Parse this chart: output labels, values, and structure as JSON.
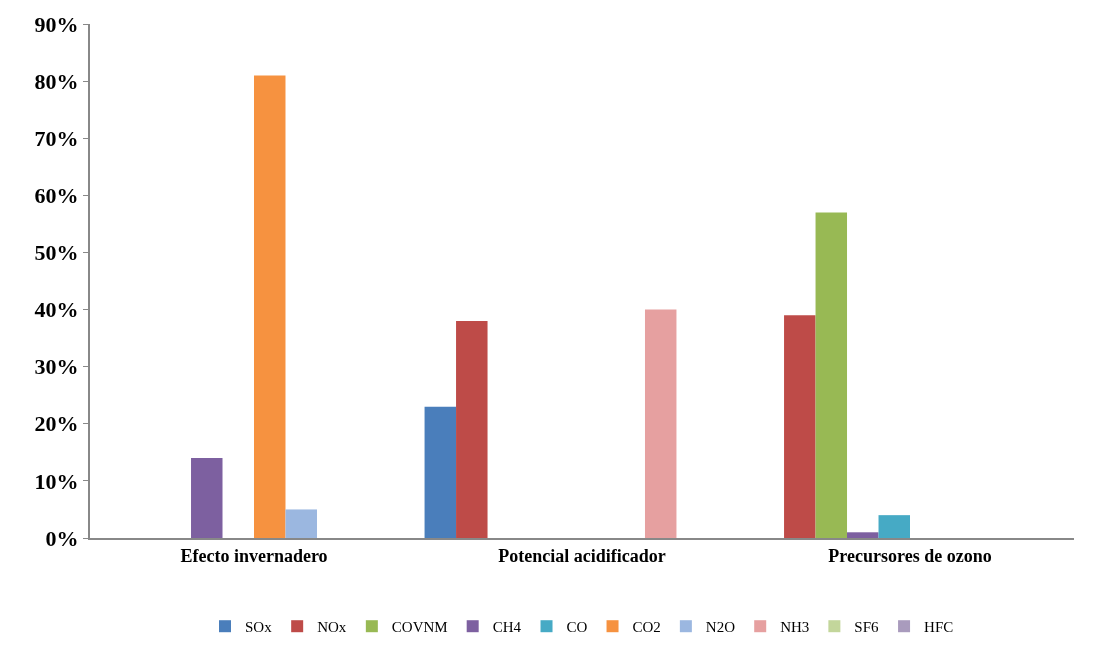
{
  "chart_data": {
    "type": "bar",
    "categories": [
      "Efecto invernadero",
      "Potencial acidificador",
      "Precursores de ozono"
    ],
    "series": [
      {
        "name": "SOx",
        "color": "#4a7ebb",
        "values": [
          0,
          23,
          0
        ]
      },
      {
        "name": "NOx",
        "color": "#be4b48",
        "values": [
          0,
          38,
          39
        ]
      },
      {
        "name": "COVNM",
        "color": "#98b954",
        "values": [
          0,
          0,
          57
        ]
      },
      {
        "name": "CH4",
        "color": "#7d60a0",
        "values": [
          14,
          0,
          1
        ]
      },
      {
        "name": "CO",
        "color": "#46aac5",
        "values": [
          0,
          0,
          4
        ]
      },
      {
        "name": "CO2",
        "color": "#f69240",
        "values": [
          81,
          0,
          0
        ]
      },
      {
        "name": "N2O",
        "color": "#9bb7e0",
        "values": [
          5,
          0,
          0
        ]
      },
      {
        "name": "NH3",
        "color": "#e6a0a0",
        "values": [
          0,
          40,
          0
        ]
      },
      {
        "name": "SF6",
        "color": "#c3d69b",
        "values": [
          0,
          0,
          0
        ]
      },
      {
        "name": "HFC",
        "color": "#a99bbd",
        "values": [
          0,
          0,
          0
        ]
      }
    ],
    "ylim": [
      0,
      90
    ],
    "yticks": [
      {
        "value": 0,
        "label": "0%"
      },
      {
        "value": 10,
        "label": "10%"
      },
      {
        "value": 20,
        "label": "20%"
      },
      {
        "value": 30,
        "label": "30%"
      },
      {
        "value": 40,
        "label": "40%"
      },
      {
        "value": 50,
        "label": "50%"
      },
      {
        "value": 60,
        "label": "60%"
      },
      {
        "value": 70,
        "label": "70%"
      },
      {
        "value": 80,
        "label": "80%"
      },
      {
        "value": 90,
        "label": "90%"
      }
    ],
    "legend": "bottom"
  }
}
